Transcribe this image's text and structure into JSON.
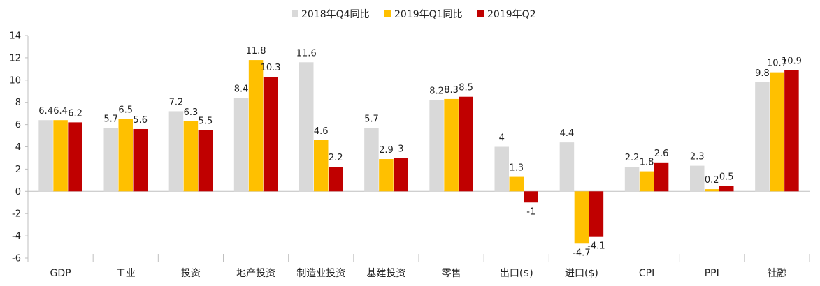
{
  "chart_data": {
    "type": "bar",
    "title": "",
    "xlabel": "",
    "ylabel": "",
    "ylim": [
      -6,
      14
    ],
    "yticks": [
      -6,
      -4,
      -2,
      0,
      2,
      4,
      6,
      8,
      10,
      12,
      14
    ],
    "grid": false,
    "legend_position": "top-center",
    "categories": [
      "GDP",
      "工业",
      "投资",
      "地产投资",
      "制造业投资",
      "基建投资",
      "零售",
      "出口($)",
      "进口($)",
      "CPI",
      "PPI",
      "社融"
    ],
    "series": [
      {
        "name": "2018年Q4同比",
        "color": "#D9D9D9",
        "values": [
          6.4,
          5.7,
          7.2,
          8.4,
          11.6,
          5.7,
          8.2,
          4,
          4.4,
          2.2,
          2.3,
          9.8
        ]
      },
      {
        "name": "2019年Q1同比",
        "color": "#FFC000",
        "values": [
          6.4,
          6.5,
          6.3,
          11.8,
          4.6,
          2.9,
          8.3,
          1.3,
          -4.7,
          1.8,
          0.2,
          10.7
        ]
      },
      {
        "name": "2019年Q2",
        "color": "#C00000",
        "values": [
          6.2,
          5.6,
          5.5,
          10.3,
          2.2,
          3,
          8.5,
          -1,
          -4.1,
          2.6,
          0.5,
          10.9
        ]
      }
    ]
  }
}
